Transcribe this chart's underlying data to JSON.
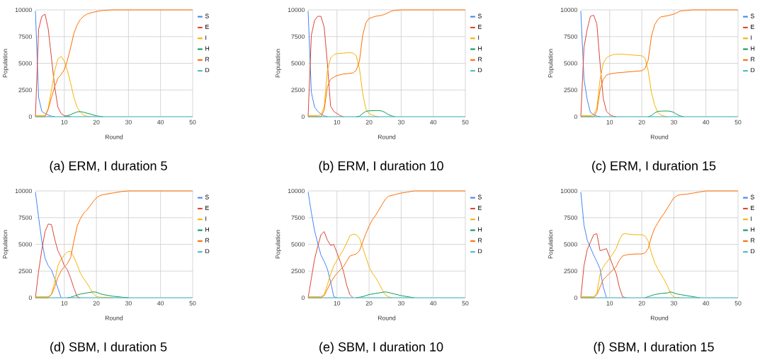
{
  "chart_data": [
    {
      "type": "line",
      "xlabel": "Round",
      "ylabel": "Population",
      "xlim": [
        1,
        50
      ],
      "ylim": [
        0,
        10000
      ],
      "xticks": [
        10,
        20,
        30,
        40,
        50
      ],
      "yticks": [
        0,
        2500,
        5000,
        7500,
        10000
      ],
      "grid": true,
      "legend": "right",
      "annotations": [
        "(a) ERM, I duration 5"
      ],
      "series": [
        {
          "name": "S",
          "color": "#4285f4",
          "x": [
            1,
            2,
            3,
            4,
            5,
            6,
            7
          ],
          "values": [
            9900,
            1800,
            500,
            300,
            150,
            50,
            0
          ]
        },
        {
          "name": "E",
          "color": "#db4437",
          "x": [
            1,
            2,
            3,
            4,
            5,
            6,
            7,
            8,
            9,
            10,
            11,
            12
          ],
          "values": [
            0,
            8200,
            9400,
            9600,
            8200,
            5500,
            2800,
            900,
            300,
            100,
            30,
            0
          ]
        },
        {
          "name": "I",
          "color": "#f4b400",
          "x": [
            1,
            4,
            5,
            6,
            7,
            8,
            9,
            10,
            11,
            12,
            13,
            14,
            15,
            16,
            17,
            18
          ],
          "values": [
            100,
            100,
            800,
            2500,
            4300,
            5400,
            5650,
            5200,
            4300,
            3100,
            1800,
            900,
            400,
            150,
            50,
            0
          ]
        },
        {
          "name": "H",
          "color": "#0f9d58",
          "x": [
            10,
            12,
            14,
            15,
            16,
            18,
            20,
            22
          ],
          "values": [
            0,
            200,
            450,
            480,
            420,
            250,
            80,
            0
          ]
        },
        {
          "name": "R",
          "color": "#ff6d01",
          "x": [
            1,
            4,
            5,
            6,
            7,
            8,
            9,
            10,
            11,
            12,
            13,
            14,
            15,
            16,
            17,
            18,
            20,
            22,
            25,
            50
          ],
          "values": [
            0,
            0,
            700,
            1800,
            2800,
            3600,
            3950,
            4400,
            5300,
            6500,
            7800,
            8600,
            9100,
            9400,
            9600,
            9700,
            9850,
            9950,
            10000,
            10000
          ]
        },
        {
          "name": "D",
          "color": "#46bdc6",
          "x": [
            1,
            50
          ],
          "values": [
            0,
            0
          ]
        }
      ]
    },
    {
      "type": "line",
      "xlabel": "Round",
      "ylabel": "Population",
      "xlim": [
        1,
        50
      ],
      "ylim": [
        0,
        10000
      ],
      "xticks": [
        10,
        20,
        30,
        40,
        50
      ],
      "yticks": [
        0,
        2500,
        5000,
        7500,
        10000
      ],
      "grid": true,
      "legend": "right",
      "annotations": [
        "(b) ERM, I duration 10"
      ],
      "series": [
        {
          "name": "S",
          "color": "#4285f4",
          "x": [
            1,
            2,
            3,
            4,
            5,
            6,
            7
          ],
          "values": [
            9900,
            2300,
            900,
            500,
            250,
            80,
            0
          ]
        },
        {
          "name": "E",
          "color": "#db4437",
          "x": [
            1,
            2,
            3,
            4,
            5,
            6,
            7,
            8,
            9,
            10,
            11,
            12
          ],
          "values": [
            0,
            7600,
            9000,
            9400,
            9400,
            8400,
            5000,
            1000,
            500,
            300,
            100,
            0
          ]
        },
        {
          "name": "I",
          "color": "#f4b400",
          "x": [
            1,
            4,
            5,
            6,
            7,
            8,
            9,
            10,
            12,
            14,
            15,
            16,
            17,
            18,
            19,
            20,
            21,
            22,
            23
          ],
          "values": [
            100,
            100,
            200,
            900,
            4300,
            5500,
            5800,
            5900,
            5950,
            6000,
            5950,
            5700,
            4500,
            2200,
            700,
            300,
            150,
            50,
            0
          ]
        },
        {
          "name": "H",
          "color": "#0f9d58",
          "x": [
            16,
            17,
            18,
            19,
            20,
            22,
            23,
            24,
            25,
            26,
            27,
            28
          ],
          "values": [
            0,
            50,
            300,
            500,
            550,
            570,
            570,
            530,
            400,
            200,
            80,
            0
          ]
        },
        {
          "name": "R",
          "color": "#ff6d01",
          "x": [
            1,
            5,
            6,
            7,
            8,
            9,
            10,
            12,
            14,
            15,
            16,
            17,
            18,
            19,
            20,
            22,
            24,
            25,
            26,
            27,
            28,
            30,
            50
          ],
          "values": [
            0,
            0,
            600,
            2800,
            3500,
            3700,
            3850,
            4000,
            4050,
            4100,
            4350,
            5200,
            7600,
            8800,
            9200,
            9400,
            9500,
            9600,
            9750,
            9900,
            9950,
            10000,
            10000
          ]
        },
        {
          "name": "D",
          "color": "#46bdc6",
          "x": [
            1,
            50
          ],
          "values": [
            0,
            0
          ]
        }
      ]
    },
    {
      "type": "line",
      "xlabel": "Round",
      "ylabel": "Population",
      "xlim": [
        1,
        50
      ],
      "ylim": [
        0,
        10000
      ],
      "xticks": [
        10,
        20,
        30,
        40,
        50
      ],
      "yticks": [
        0,
        2500,
        5000,
        7500,
        10000
      ],
      "grid": true,
      "legend": "right",
      "annotations": [
        "(c) ERM, I duration 15"
      ],
      "series": [
        {
          "name": "S",
          "color": "#4285f4",
          "x": [
            1,
            2,
            3,
            4,
            5,
            6,
            7
          ],
          "values": [
            9900,
            3500,
            1600,
            400,
            200,
            50,
            0
          ]
        },
        {
          "name": "E",
          "color": "#db4437",
          "x": [
            1,
            2,
            3,
            4,
            5,
            6,
            7,
            8,
            9,
            10,
            11,
            12
          ],
          "values": [
            0,
            6500,
            8200,
            9400,
            9500,
            8700,
            5000,
            1700,
            500,
            200,
            50,
            0
          ]
        },
        {
          "name": "I",
          "color": "#f4b400",
          "x": [
            1,
            4,
            5,
            6,
            7,
            8,
            9,
            10,
            11,
            12,
            14,
            16,
            18,
            20,
            21,
            22,
            23,
            24,
            25,
            26,
            27,
            28
          ],
          "values": [
            100,
            100,
            200,
            800,
            3500,
            5000,
            5500,
            5700,
            5800,
            5850,
            5850,
            5800,
            5750,
            5700,
            5500,
            4300,
            2300,
            1100,
            400,
            150,
            50,
            0
          ]
        },
        {
          "name": "H",
          "color": "#0f9d58",
          "x": [
            22,
            23,
            24,
            25,
            26,
            27,
            28,
            29,
            30,
            31,
            32,
            33
          ],
          "values": [
            0,
            100,
            350,
            500,
            520,
            530,
            530,
            500,
            400,
            200,
            80,
            0
          ]
        },
        {
          "name": "R",
          "color": "#ff6d01",
          "x": [
            1,
            5,
            6,
            7,
            8,
            9,
            10,
            12,
            14,
            16,
            18,
            20,
            21,
            22,
            23,
            24,
            25,
            26,
            28,
            30,
            31,
            32,
            34,
            36,
            50
          ],
          "values": [
            0,
            0,
            500,
            2500,
            3500,
            3900,
            4000,
            4100,
            4150,
            4200,
            4250,
            4300,
            4500,
            5300,
            7500,
            8600,
            9100,
            9350,
            9450,
            9600,
            9750,
            9900,
            9950,
            10000,
            10000
          ]
        },
        {
          "name": "D",
          "color": "#46bdc6",
          "x": [
            1,
            50
          ],
          "values": [
            0,
            0
          ]
        }
      ]
    },
    {
      "type": "line",
      "xlabel": "Round",
      "ylabel": "Population",
      "xlim": [
        1,
        50
      ],
      "ylim": [
        0,
        10000
      ],
      "xticks": [
        10,
        20,
        30,
        40,
        50
      ],
      "yticks": [
        0,
        2500,
        5000,
        7500,
        10000
      ],
      "grid": true,
      "legend": "right",
      "annotations": [
        "(d) SBM, I duration 5"
      ],
      "series": [
        {
          "name": "S",
          "color": "#4285f4",
          "x": [
            1,
            2,
            3,
            4,
            5,
            6,
            7,
            8,
            9
          ],
          "values": [
            9900,
            7500,
            5300,
            3700,
            3000,
            2600,
            1800,
            900,
            0
          ]
        },
        {
          "name": "E",
          "color": "#db4437",
          "x": [
            1,
            2,
            3,
            4,
            5,
            6,
            7,
            8,
            9,
            10,
            11,
            12,
            13,
            14,
            15
          ],
          "values": [
            0,
            2500,
            4500,
            6200,
            6900,
            6850,
            5500,
            4400,
            3800,
            3000,
            2600,
            1800,
            900,
            100,
            0
          ]
        },
        {
          "name": "I",
          "color": "#f4b400",
          "x": [
            1,
            5,
            6,
            7,
            8,
            9,
            10,
            11,
            12,
            13,
            14,
            15,
            16,
            17,
            18,
            19,
            20,
            21,
            25
          ],
          "values": [
            100,
            100,
            300,
            1500,
            3000,
            3600,
            4000,
            4300,
            4350,
            3800,
            3100,
            2300,
            1800,
            1400,
            900,
            400,
            100,
            50,
            0
          ]
        },
        {
          "name": "H",
          "color": "#0f9d58",
          "x": [
            11,
            12,
            13,
            14,
            15,
            16,
            17,
            18,
            19,
            20,
            21,
            22,
            23,
            25,
            28,
            30
          ],
          "values": [
            0,
            50,
            150,
            250,
            350,
            400,
            450,
            500,
            550,
            520,
            400,
            300,
            250,
            150,
            50,
            0
          ]
        },
        {
          "name": "R",
          "color": "#ff6d01",
          "x": [
            1,
            5,
            6,
            7,
            8,
            9,
            10,
            11,
            12,
            13,
            14,
            15,
            16,
            17,
            18,
            19,
            20,
            21,
            22,
            24,
            26,
            28,
            30,
            50
          ],
          "values": [
            0,
            0,
            300,
            1000,
            1900,
            2500,
            2900,
            3200,
            3800,
            5300,
            6700,
            7400,
            7900,
            8200,
            8600,
            9000,
            9350,
            9550,
            9650,
            9750,
            9850,
            9950,
            10000,
            10000
          ]
        },
        {
          "name": "D",
          "color": "#46bdc6",
          "x": [
            1,
            50
          ],
          "values": [
            0,
            0
          ]
        }
      ]
    },
    {
      "type": "line",
      "xlabel": "Round",
      "ylabel": "Population",
      "xlim": [
        1,
        50
      ],
      "ylim": [
        0,
        10000
      ],
      "xticks": [
        10,
        20,
        30,
        40,
        50
      ],
      "yticks": [
        0,
        2500,
        5000,
        7500,
        10000
      ],
      "grid": true,
      "legend": "right",
      "annotations": [
        "(e) SBM, I duration 10"
      ],
      "series": [
        {
          "name": "S",
          "color": "#4285f4",
          "x": [
            1,
            2,
            3,
            4,
            5,
            6,
            7,
            8,
            9,
            10
          ],
          "values": [
            9900,
            8000,
            6300,
            5100,
            4000,
            3400,
            2700,
            1500,
            100,
            0
          ]
        },
        {
          "name": "E",
          "color": "#db4437",
          "x": [
            1,
            2,
            3,
            4,
            5,
            6,
            7,
            8,
            9,
            10,
            11,
            12,
            13,
            14,
            15
          ],
          "values": [
            0,
            1800,
            3600,
            4800,
            5900,
            6200,
            5400,
            4900,
            5000,
            4200,
            3400,
            2500,
            1200,
            300,
            0
          ]
        },
        {
          "name": "I",
          "color": "#f4b400",
          "x": [
            1,
            5,
            6,
            7,
            8,
            9,
            10,
            11,
            12,
            13,
            14,
            15,
            16,
            17,
            18,
            19,
            20,
            21,
            22,
            23,
            24,
            25,
            26,
            27
          ],
          "values": [
            100,
            100,
            300,
            1200,
            2200,
            3000,
            3500,
            4000,
            4500,
            5100,
            5800,
            5950,
            5900,
            5600,
            4700,
            3800,
            2900,
            2300,
            1900,
            1400,
            800,
            300,
            100,
            0
          ]
        },
        {
          "name": "H",
          "color": "#0f9d58",
          "x": [
            16,
            18,
            20,
            22,
            24,
            25,
            26,
            27,
            28,
            30,
            32,
            34
          ],
          "values": [
            0,
            100,
            300,
            400,
            500,
            550,
            500,
            420,
            350,
            200,
            100,
            0
          ]
        },
        {
          "name": "R",
          "color": "#ff6d01",
          "x": [
            1,
            5,
            6,
            7,
            8,
            9,
            10,
            11,
            12,
            13,
            14,
            15,
            16,
            17,
            18,
            19,
            20,
            21,
            22,
            23,
            24,
            25,
            26,
            28,
            30,
            32,
            34,
            50
          ],
          "values": [
            0,
            0,
            200,
            800,
            1400,
            1900,
            2300,
            2600,
            2900,
            3400,
            3900,
            4000,
            4100,
            4400,
            5200,
            6000,
            6700,
            7300,
            7700,
            8200,
            8700,
            9200,
            9500,
            9650,
            9800,
            9900,
            10000,
            10000
          ]
        },
        {
          "name": "D",
          "color": "#46bdc6",
          "x": [
            1,
            50
          ],
          "values": [
            0,
            0
          ]
        }
      ]
    },
    {
      "type": "line",
      "xlabel": "Round",
      "ylabel": "Population",
      "xlim": [
        1,
        50
      ],
      "ylim": [
        0,
        10000
      ],
      "xticks": [
        10,
        20,
        30,
        40,
        50
      ],
      "yticks": [
        0,
        2500,
        5000,
        7500,
        10000
      ],
      "grid": true,
      "legend": "right",
      "annotations": [
        "(f) SBM, I duration 15"
      ],
      "series": [
        {
          "name": "S",
          "color": "#4285f4",
          "x": [
            1,
            2,
            3,
            4,
            5,
            6,
            7,
            8,
            9
          ],
          "values": [
            9900,
            6800,
            5400,
            4700,
            4000,
            3400,
            2700,
            1000,
            0
          ]
        },
        {
          "name": "E",
          "color": "#db4437",
          "x": [
            1,
            2,
            3,
            4,
            5,
            6,
            7,
            8,
            9,
            10,
            11,
            12,
            13,
            14,
            15
          ],
          "values": [
            0,
            3000,
            4500,
            5200,
            5900,
            6000,
            4400,
            4500,
            4600,
            3800,
            3000,
            2300,
            1000,
            100,
            0
          ]
        },
        {
          "name": "I",
          "color": "#f4b400",
          "x": [
            1,
            5,
            6,
            7,
            8,
            9,
            10,
            11,
            12,
            13,
            14,
            15,
            16,
            18,
            20,
            21,
            22,
            23,
            24,
            25,
            26,
            27,
            28,
            29,
            30,
            32
          ],
          "values": [
            100,
            100,
            400,
            2200,
            2900,
            3300,
            3700,
            4100,
            4600,
            5400,
            5950,
            6000,
            5950,
            5900,
            5900,
            5800,
            5300,
            4200,
            3300,
            2700,
            2200,
            1700,
            1100,
            400,
            50,
            0
          ]
        },
        {
          "name": "H",
          "color": "#0f9d58",
          "x": [
            21,
            22,
            23,
            24,
            26,
            28,
            29,
            30,
            31,
            32,
            34,
            36,
            38
          ],
          "values": [
            0,
            100,
            200,
            300,
            400,
            450,
            550,
            450,
            350,
            300,
            200,
            100,
            0
          ]
        },
        {
          "name": "R",
          "color": "#ff6d01",
          "x": [
            1,
            5,
            6,
            7,
            8,
            9,
            10,
            11,
            12,
            13,
            14,
            15,
            16,
            18,
            20,
            21,
            22,
            23,
            24,
            25,
            26,
            27,
            28,
            29,
            30,
            31,
            32,
            34,
            36,
            38,
            40,
            50
          ],
          "values": [
            0,
            0,
            300,
            1000,
            1700,
            2000,
            2300,
            2600,
            2900,
            3500,
            3900,
            4000,
            4050,
            4100,
            4100,
            4200,
            4600,
            5700,
            6500,
            7000,
            7500,
            7900,
            8400,
            8900,
            9350,
            9550,
            9650,
            9700,
            9800,
            9900,
            10000,
            10000
          ]
        },
        {
          "name": "D",
          "color": "#46bdc6",
          "x": [
            1,
            50
          ],
          "values": [
            0,
            0
          ]
        }
      ]
    }
  ]
}
